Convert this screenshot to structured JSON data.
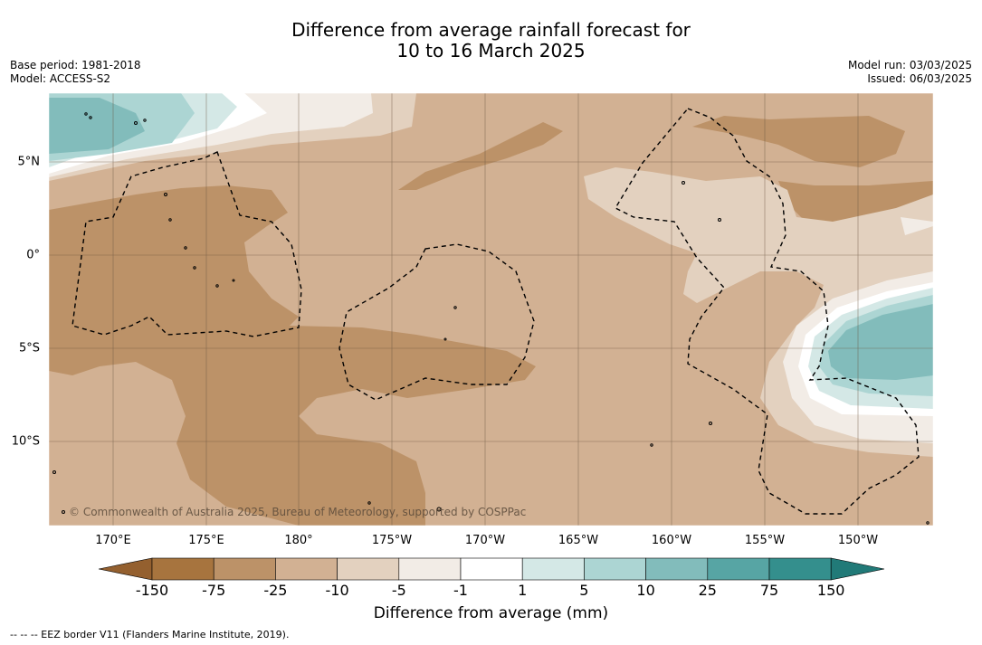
{
  "title": {
    "line1": "Difference from average rainfall forecast for",
    "line2": "10 to 16 March 2025"
  },
  "meta": {
    "base_period": "Base period: 1981-2018",
    "model": "Model: ACCESS-S2",
    "model_run": "Model run: 03/03/2025",
    "issued": "Issued: 06/03/2025"
  },
  "map": {
    "lon_labels": [
      "170°E",
      "175°E",
      "180°",
      "175°W",
      "170°W",
      "165°W",
      "160°W",
      "155°W",
      "150°W"
    ],
    "lat_labels": [
      "5°N",
      "0°",
      "5°S",
      "10°S"
    ],
    "copyright": "© Commonwealth of Australia 2025, Bureau of Meteorology, supported by COSPPac"
  },
  "colorbar": {
    "title": "Difference from average (mm)",
    "tick_labels": [
      "-150",
      "-75",
      "-25",
      "-10",
      "-5",
      "-1",
      "1",
      "5",
      "10",
      "25",
      "75",
      "150"
    ],
    "colors": [
      "#a7743e",
      "#bc9268",
      "#d2b193",
      "#e3d1bf",
      "#f2ece6",
      "#ffffff",
      "#d4e8e6",
      "#acd5d3",
      "#82bcbb",
      "#57a5a4",
      "#348f8d"
    ],
    "under_color": "#94602f",
    "over_color": "#217a78"
  },
  "footnote": "--  --  -- EEZ border V11 (Flanders Marine Institute, 2019)."
}
